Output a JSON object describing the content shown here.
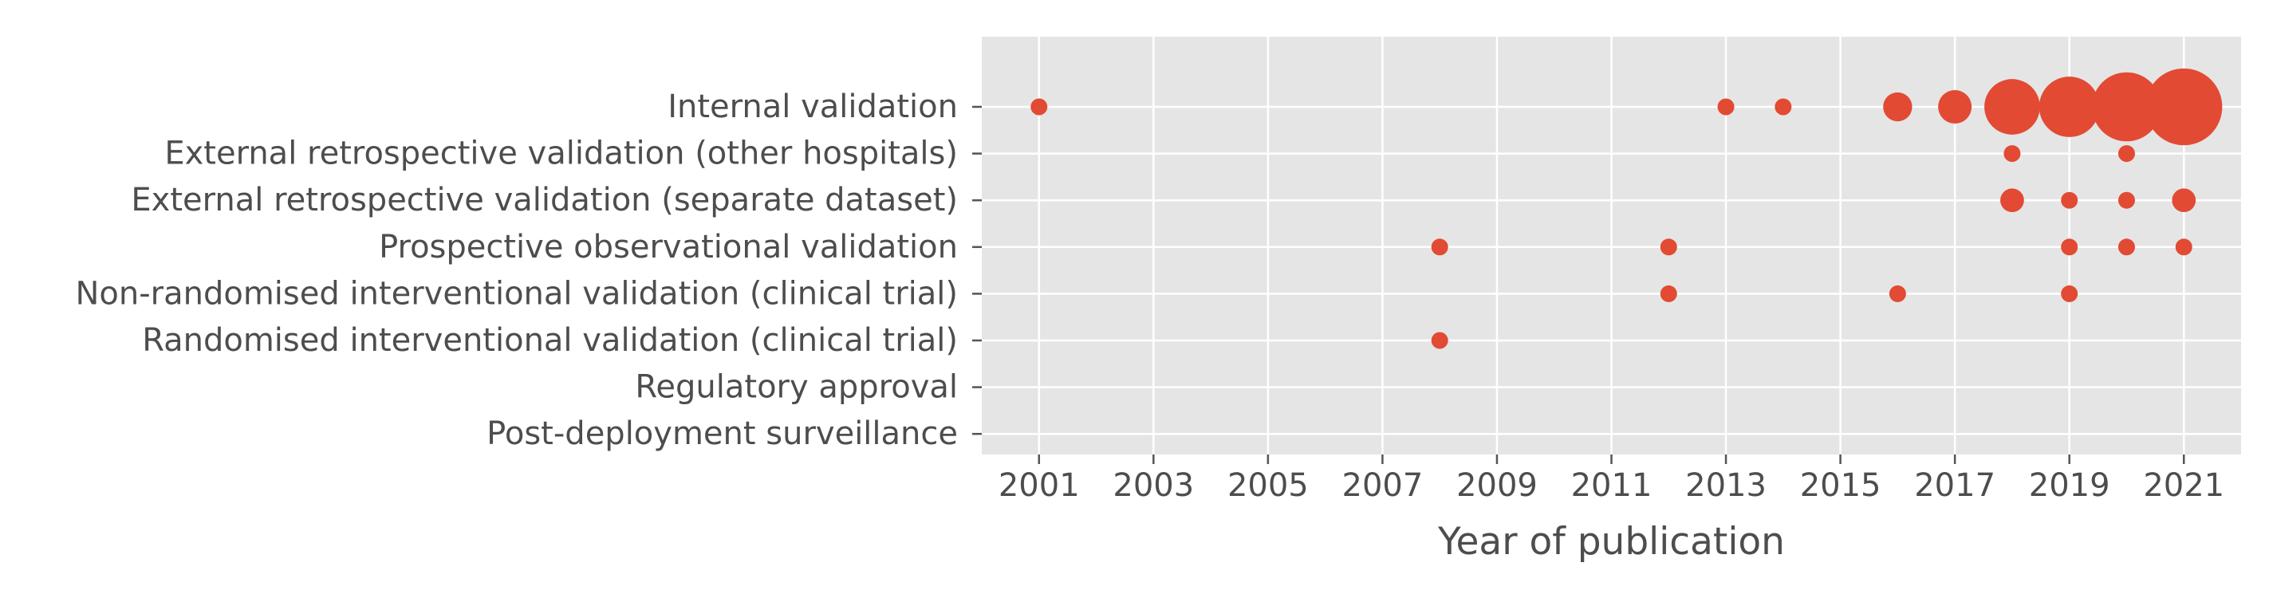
{
  "chart_data": {
    "type": "scatter",
    "xlabel": "Year of publication",
    "ylabel": "",
    "xlim": [
      2000.0,
      2022.0
    ],
    "x_ticks": [
      "2001",
      "2003",
      "2005",
      "2007",
      "2009",
      "2011",
      "2013",
      "2015",
      "2017",
      "2019",
      "2021"
    ],
    "categories": [
      "Internal validation",
      "External retrospective validation (other hospitals)",
      "External retrospective validation (separate dataset)",
      "Prospective observational validation",
      "Non-randomised interventional validation (clinical trial)",
      "Randomised interventional validation (clinical trial)",
      "Regulatory approval",
      "Post-deployment surveillance"
    ],
    "grid": true,
    "background_color": "#e5e5e5",
    "marker_color": "#e24a33",
    "points": [
      {
        "x": 2001,
        "y": "Internal validation",
        "size": 1
      },
      {
        "x": 2013,
        "y": "Internal validation",
        "size": 1
      },
      {
        "x": 2014,
        "y": "Internal validation",
        "size": 1
      },
      {
        "x": 2016,
        "y": "Internal validation",
        "size": 3
      },
      {
        "x": 2017,
        "y": "Internal validation",
        "size": 4
      },
      {
        "x": 2018,
        "y": "Internal validation",
        "size": 11
      },
      {
        "x": 2019,
        "y": "Internal validation",
        "size": 13
      },
      {
        "x": 2020,
        "y": "Internal validation",
        "size": 17
      },
      {
        "x": 2021,
        "y": "Internal validation",
        "size": 21
      },
      {
        "x": 2018,
        "y": "External retrospective validation (other hospitals)",
        "size": 1
      },
      {
        "x": 2020,
        "y": "External retrospective validation (other hospitals)",
        "size": 1
      },
      {
        "x": 2018,
        "y": "External retrospective validation (separate dataset)",
        "size": 2
      },
      {
        "x": 2019,
        "y": "External retrospective validation (separate dataset)",
        "size": 1
      },
      {
        "x": 2020,
        "y": "External retrospective validation (separate dataset)",
        "size": 1
      },
      {
        "x": 2021,
        "y": "External retrospective validation (separate dataset)",
        "size": 2
      },
      {
        "x": 2008,
        "y": "Prospective observational validation",
        "size": 1
      },
      {
        "x": 2012,
        "y": "Prospective observational validation",
        "size": 1
      },
      {
        "x": 2019,
        "y": "Prospective observational validation",
        "size": 1
      },
      {
        "x": 2020,
        "y": "Prospective observational validation",
        "size": 1
      },
      {
        "x": 2021,
        "y": "Prospective observational validation",
        "size": 1
      },
      {
        "x": 2012,
        "y": "Non-randomised interventional validation (clinical trial)",
        "size": 1
      },
      {
        "x": 2016,
        "y": "Non-randomised interventional validation (clinical trial)",
        "size": 1
      },
      {
        "x": 2019,
        "y": "Non-randomised interventional validation (clinical trial)",
        "size": 1
      },
      {
        "x": 2008,
        "y": "Randomised interventional validation (clinical trial)",
        "size": 1
      }
    ]
  }
}
